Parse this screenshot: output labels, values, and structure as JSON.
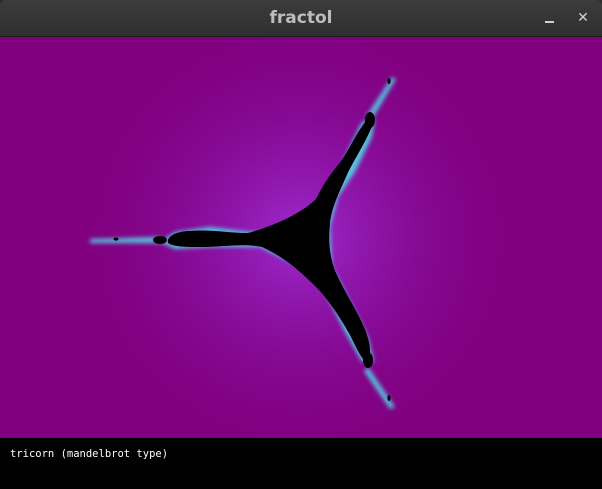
{
  "window": {
    "title": "fractol"
  },
  "render": {
    "background_color": "#800080",
    "halo_color": "#9a20c8",
    "edge_color": "#4fd8e8",
    "set_color": "#000000"
  },
  "status": {
    "text": "tricorn (mandelbrot type)"
  },
  "icons": {
    "minimize": "minimize-icon",
    "close": "close-icon"
  }
}
